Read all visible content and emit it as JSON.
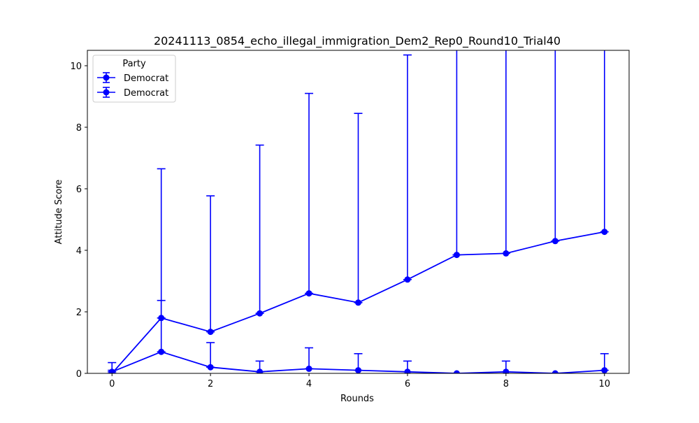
{
  "chart_data": {
    "type": "line",
    "title": "20241113_0854_echo_illegal_immigration_Dem2_Rep0_Round10_Trial40",
    "xlabel": "Rounds",
    "ylabel": "Attitude Score",
    "xlim": [
      -0.5,
      10.5
    ],
    "ylim": [
      0,
      10.5
    ],
    "x_ticks": [
      0,
      2,
      4,
      6,
      8,
      10
    ],
    "y_ticks": [
      0,
      2,
      4,
      6,
      8,
      10
    ],
    "grid": false,
    "legend": {
      "title": "Party",
      "placement": "top-left"
    },
    "x": [
      0,
      1,
      2,
      3,
      4,
      5,
      6,
      7,
      8,
      9,
      10
    ],
    "series": [
      {
        "name": "Democrat",
        "color": "#0000ff",
        "values": [
          0.0,
          1.8,
          1.35,
          1.95,
          2.6,
          2.3,
          3.05,
          3.85,
          3.9,
          4.3,
          4.6
        ],
        "error_upper": [
          0.35,
          4.85,
          4.42,
          5.47,
          6.5,
          6.15,
          7.3,
          8.35,
          8.47,
          8.83,
          9.22
        ],
        "error_lower": [
          0.0,
          0.0,
          0.0,
          0.0,
          0.0,
          0.0,
          0.0,
          0.0,
          0.0,
          0.0,
          0.0
        ]
      },
      {
        "name": "Democrat",
        "color": "#0000ff",
        "values": [
          0.05,
          0.7,
          0.2,
          0.05,
          0.15,
          0.1,
          0.05,
          0.0,
          0.05,
          0.0,
          0.1
        ],
        "error_upper": [
          0.05,
          1.67,
          0.8,
          0.35,
          0.68,
          0.54,
          0.35,
          0.0,
          0.35,
          0.0,
          0.54
        ],
        "error_lower": [
          0.0,
          0.0,
          0.0,
          0.0,
          0.0,
          0.0,
          0.0,
          0.0,
          0.0,
          0.0,
          0.0
        ]
      }
    ]
  }
}
